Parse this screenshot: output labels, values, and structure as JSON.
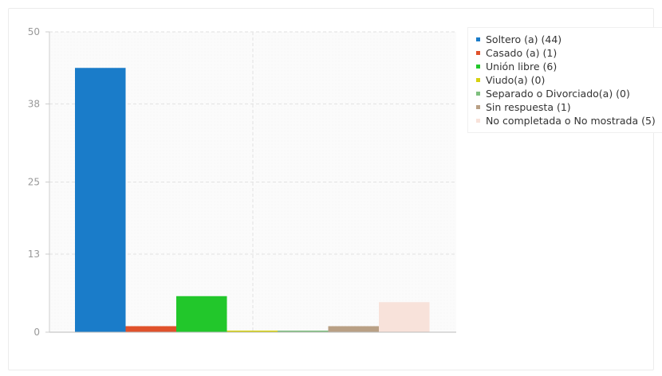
{
  "chart_data": {
    "type": "bar",
    "categories": [
      "Soltero (a)",
      "Casado (a)",
      "Unión libre",
      "Viudo(a)",
      "Separado o Divorciado(a)",
      "Sin respuesta",
      "No completada o No mostrada"
    ],
    "values": [
      44,
      1,
      6,
      0,
      0,
      1,
      5
    ],
    "colors": [
      "#1a7cc9",
      "#e0522b",
      "#22c72b",
      "#d6d10f",
      "#7fbf7f",
      "#b9a085",
      "#f8e2da"
    ],
    "ylim": [
      0,
      50
    ],
    "yticks": [
      "0",
      "13",
      "25",
      "38",
      "50"
    ],
    "legend_position": "right",
    "legend": [
      "Soltero (a) (44)",
      "Casado (a) (1)",
      "Unión libre (6)",
      "Viudo(a) (0)",
      "Separado o Divorciado(a) (0)",
      "Sin respuesta (1)",
      "No completada o No mostrada (5)"
    ],
    "grid": true
  }
}
